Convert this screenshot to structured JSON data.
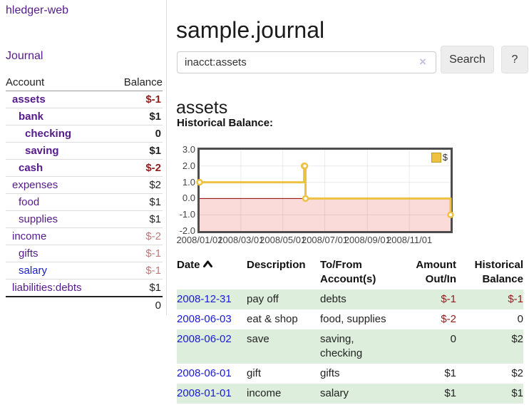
{
  "app": {
    "brand": "hledger-web"
  },
  "nav": {
    "journal": "Journal"
  },
  "colors": {
    "link_purple": "#551a8b",
    "link_blue": "#1a1ad6",
    "negative_strong": "#8f1d1d",
    "negative_soft": "#b87c7c",
    "row_stripe_green": "#ddeedd"
  },
  "sidebar": {
    "headers": {
      "account": "Account",
      "balance": "Balance"
    },
    "accounts": [
      {
        "name": "assets",
        "balance": "$-1"
      },
      {
        "name": "bank",
        "balance": "$1"
      },
      {
        "name": "checking",
        "balance": "0"
      },
      {
        "name": "saving",
        "balance": "$1"
      },
      {
        "name": "cash",
        "balance": "$-2"
      },
      {
        "name": "expenses",
        "balance": "$2"
      },
      {
        "name": "food",
        "balance": "$1"
      },
      {
        "name": "supplies",
        "balance": "$1"
      },
      {
        "name": "income",
        "balance": "$-2"
      },
      {
        "name": "gifts",
        "balance": "$-1"
      },
      {
        "name": "salary",
        "balance": "$-1"
      },
      {
        "name": "liabilities:debts",
        "balance": "$1"
      }
    ],
    "total": "0"
  },
  "header": {
    "title": "sample.journal"
  },
  "search": {
    "query": "inacct:assets",
    "clear_icon": "×",
    "search_label": "Search",
    "help_label": "?"
  },
  "account_view": {
    "heading": "assets",
    "chart_title": "Historical Balance:"
  },
  "chart_data": {
    "type": "line",
    "style": "step",
    "series_label": "$",
    "series_color": "#edc240",
    "x_start": "2008-01-01",
    "x_end": "2008-12-31",
    "ylim": [
      -2,
      3
    ],
    "y_ticks": [
      3,
      2,
      1,
      0,
      -1,
      -2
    ],
    "x_ticks": [
      {
        "label": "2008/01/01",
        "date": "2008-01-01"
      },
      {
        "label": "2008/03/01",
        "date": "2008-03-01"
      },
      {
        "label": "2008/05/01",
        "date": "2008-05-01"
      },
      {
        "label": "2008/07/01",
        "date": "2008-07-01"
      },
      {
        "label": "2008/09/01",
        "date": "2008-09-01"
      },
      {
        "label": "2008/11/01",
        "date": "2008-11-01"
      }
    ],
    "points": [
      {
        "date": "2008-01-01",
        "value": 1
      },
      {
        "date": "2008-06-01",
        "value": 2
      },
      {
        "date": "2008-06-02",
        "value": 2
      },
      {
        "date": "2008-06-03",
        "value": 0
      },
      {
        "date": "2008-12-31",
        "value": -1
      }
    ],
    "negative_region_color": "#fbdada",
    "zero_line_color": "#8b0000",
    "grid": true,
    "legend_position": "top-right"
  },
  "register": {
    "headers": {
      "date": "Date",
      "description": "Description",
      "accounts": "To/From Account(s)",
      "amount": "Amount Out/In",
      "balance": "Historical Balance"
    },
    "rows": [
      {
        "date": "2008-12-31",
        "description": "pay off",
        "accounts": "debts",
        "amount": "$-1",
        "balance": "$-1"
      },
      {
        "date": "2008-06-03",
        "description": "eat & shop",
        "accounts": "food, supplies",
        "amount": "$-2",
        "balance": "0"
      },
      {
        "date": "2008-06-02",
        "description": "save",
        "accounts": "saving, checking",
        "amount": "0",
        "balance": "$2"
      },
      {
        "date": "2008-06-01",
        "description": "gift",
        "accounts": "gifts",
        "amount": "$1",
        "balance": "$2"
      },
      {
        "date": "2008-01-01",
        "description": "income",
        "accounts": "salary",
        "amount": "$1",
        "balance": "$1"
      }
    ]
  }
}
